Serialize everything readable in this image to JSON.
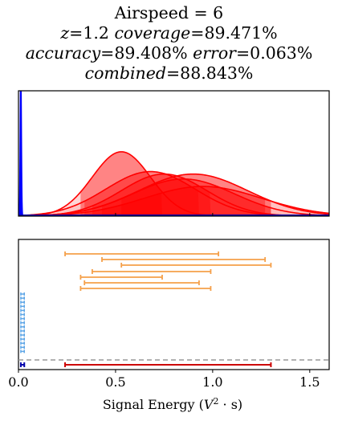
{
  "title": {
    "line1": "Airspeed = 6",
    "z_label": "z",
    "z_value": "=1.2",
    "coverage_label": "coverage",
    "coverage_value": "=89.471%",
    "accuracy_label": "accuracy",
    "accuracy_value": "=89.408%",
    "error_label": "error",
    "error_value": "=0.063%",
    "combined_label": "combined",
    "combined_value": "=88.843%"
  },
  "colors": {
    "blue": "#0000ff",
    "red": "#ff0000",
    "light_red_fill": "#ffb3b3",
    "orange": "#f5a04a",
    "light_blue": "#5fa6e6",
    "dark_red": "#cc0000",
    "dark_blue": "#0000aa",
    "gray_dashed": "#999999"
  },
  "chart_data": [
    {
      "type": "area",
      "name": "density-plot",
      "xlim": [
        0,
        1.6
      ],
      "ylim": [
        0,
        1
      ],
      "x_ticks": [
        0.5,
        1.0,
        1.5
      ],
      "blue_curve": {
        "mean": 0.012,
        "sd": 0.003,
        "peak": 1.0
      },
      "red_curves": [
        {
          "mean": 0.53,
          "sd": 0.15,
          "peak": 0.52,
          "lo": 0.0,
          "hi": 1.6
        },
        {
          "mean": 0.68,
          "sd": 0.23,
          "peak": 0.36,
          "lo": 0.0,
          "hi": 1.6
        },
        {
          "mean": 0.75,
          "sd": 0.22,
          "peak": 0.34,
          "lo": 0.0,
          "hi": 1.6
        },
        {
          "mean": 0.9,
          "sd": 0.28,
          "peak": 0.34,
          "lo": 0.0,
          "hi": 1.6
        },
        {
          "mean": 0.85,
          "sd": 0.26,
          "peak": 0.3,
          "lo": 0.0,
          "hi": 1.6
        },
        {
          "mean": 0.95,
          "sd": 0.3,
          "peak": 0.24,
          "lo": 0.0,
          "hi": 1.6
        }
      ],
      "red_fill_ranges": [
        [
          0.32,
          0.74
        ],
        [
          0.34,
          0.93
        ],
        [
          0.38,
          0.99
        ],
        [
          0.43,
          1.27
        ],
        [
          0.53,
          1.3
        ],
        [
          0.24,
          1.3
        ]
      ]
    },
    {
      "type": "scatter",
      "name": "interval-plot",
      "xlim": [
        0,
        1.6
      ],
      "x_ticks": [
        0.0,
        0.5,
        1.0,
        1.5
      ],
      "x_tick_labels": [
        "0.0",
        "0.5",
        "1.0",
        "1.5"
      ],
      "xlabel_prefix": "Signal Energy (",
      "xlabel_math": "V",
      "xlabel_sup": "2",
      "xlabel_suffix": " · s)",
      "orange_intervals": [
        [
          0.24,
          1.03
        ],
        [
          0.43,
          1.27
        ],
        [
          0.53,
          1.3
        ],
        [
          0.38,
          0.99
        ],
        [
          0.32,
          0.74
        ],
        [
          0.34,
          0.93
        ],
        [
          0.32,
          0.99
        ]
      ],
      "blue_intervals_count": 15,
      "blue_interval": [
        0.012,
        0.03
      ],
      "aggregate_red_interval": [
        0.24,
        1.3
      ],
      "aggregate_blue_interval": [
        0.012,
        0.03
      ],
      "dashed_line_y": 0.03
    }
  ]
}
